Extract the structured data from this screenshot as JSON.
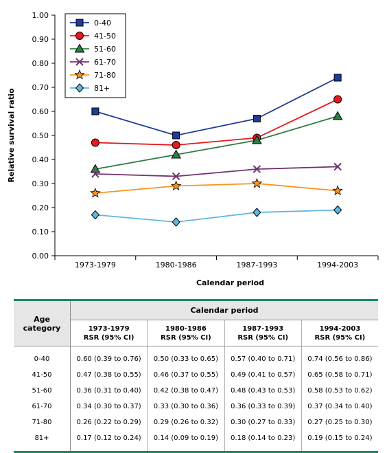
{
  "chart_data": {
    "type": "line",
    "xlabel": "Calendar period",
    "ylabel": "Relative survival ratio",
    "categories": [
      "1973-1979",
      "1980-1986",
      "1987-1993",
      "1994-2003"
    ],
    "ylim": [
      0,
      1.0
    ],
    "yticks": [
      "0.00",
      "0.10",
      "0.20",
      "0.30",
      "0.40",
      "0.50",
      "0.60",
      "0.70",
      "0.80",
      "0.90",
      "1.00"
    ],
    "legend_position": "top-left",
    "series": [
      {
        "name": "0-40",
        "values": [
          0.6,
          0.5,
          0.57,
          0.74
        ],
        "color": "#1f3c99",
        "marker": "square"
      },
      {
        "name": "41-50",
        "values": [
          0.47,
          0.46,
          0.49,
          0.65
        ],
        "color": "#e8191d",
        "marker": "circle"
      },
      {
        "name": "51-60",
        "values": [
          0.36,
          0.42,
          0.48,
          0.58
        ],
        "color": "#2f7d45",
        "marker": "triangle"
      },
      {
        "name": "61-70",
        "values": [
          0.34,
          0.33,
          0.36,
          0.37
        ],
        "color": "#6f3472",
        "marker": "x"
      },
      {
        "name": "71-80",
        "values": [
          0.26,
          0.29,
          0.3,
          0.27
        ],
        "color": "#f7941d",
        "marker": "star"
      },
      {
        "name": "81+",
        "values": [
          0.17,
          0.14,
          0.18,
          0.19
        ],
        "color": "#5fb6e1",
        "marker": "diamond"
      }
    ]
  },
  "table": {
    "age_header_line1": "Age",
    "age_header_line2": "category",
    "period_header": "Calendar period",
    "periods": [
      "1973-1979",
      "1980-1986",
      "1987-1993",
      "1994-2003"
    ],
    "sub_header": "RSR (95% CI)",
    "rows": [
      {
        "age": "0-40",
        "cells": [
          "0.60 (0.39 to 0.76)",
          "0.50 (0.33 to 0.65)",
          "0.57 (0.40 to 0.71)",
          "0.74 (0.56 to 0.86)"
        ]
      },
      {
        "age": "41-50",
        "cells": [
          "0.47 (0.38 to 0.55)",
          "0.46 (0.37 to 0.55)",
          "0.49 (0.41 to 0.57)",
          "0.65 (0.58 to 0.71)"
        ]
      },
      {
        "age": "51-60",
        "cells": [
          "0.36 (0.31 to 0.40)",
          "0.42 (0.38 to 0.47)",
          "0.48 (0.43 to 0.53)",
          "0.58 (0.53 to 0.62)"
        ]
      },
      {
        "age": "61-70",
        "cells": [
          "0.34 (0.30 to 0.37)",
          "0.33 (0.30 to 0.36)",
          "0.36 (0.33 to 0.39)",
          "0.37 (0.34 to 0.40)"
        ]
      },
      {
        "age": "71-80",
        "cells": [
          "0.26 (0.22 to 0.29)",
          "0.29 (0.26 to 0.32)",
          "0.30 (0.27 to 0.33)",
          "0.27 (0.25 to 0.30)"
        ]
      },
      {
        "age": "81+",
        "cells": [
          "0.17 (0.12 to 0.24)",
          "0.14 (0.09 to 0.19)",
          "0.18 (0.14 to 0.23)",
          "0.19 (0.15 to 0.24)"
        ]
      }
    ]
  }
}
